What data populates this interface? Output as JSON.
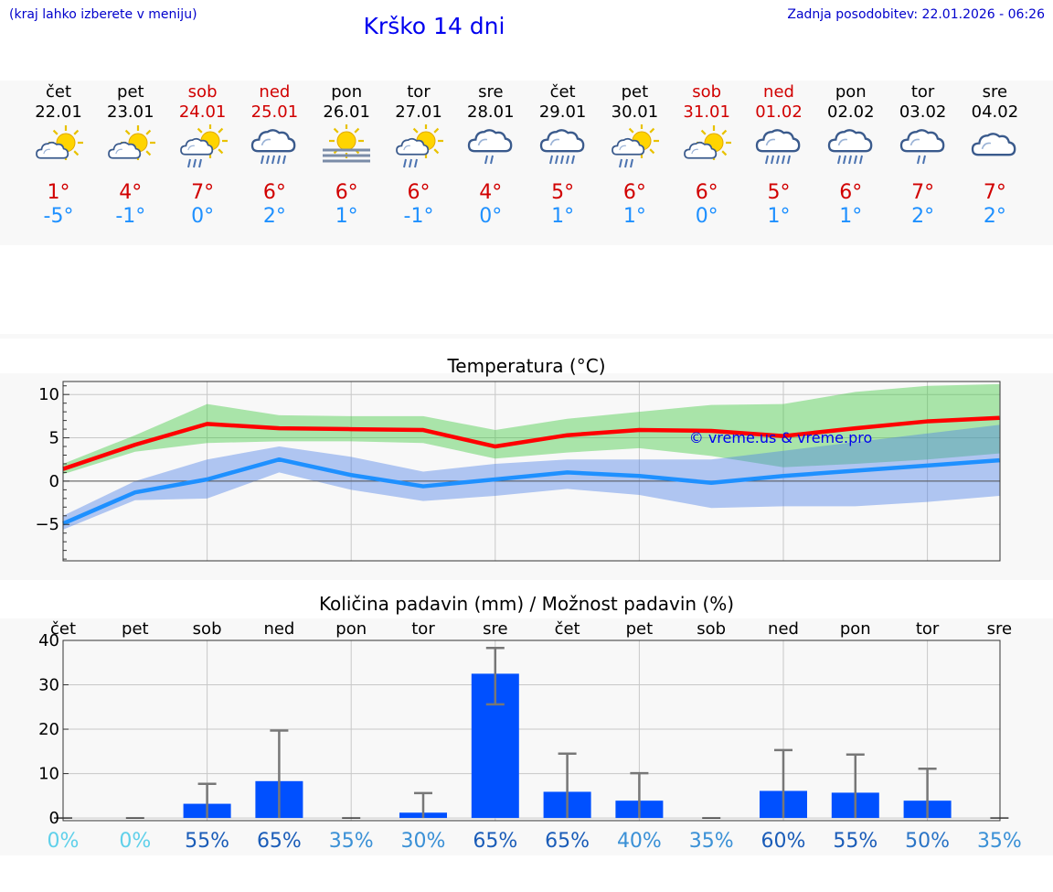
{
  "header": {
    "hint": "(kraj lahko izberete v meniju)",
    "title": "Krško 14 dni",
    "updated": "Zadnja posodobitev: 22.01.2026 - 06:26"
  },
  "days": [
    {
      "name": "čet",
      "date": "22.01",
      "weekend": false,
      "icon": "partly-cloudy-icon",
      "tmax": "1°",
      "tmin": "-5°"
    },
    {
      "name": "pet",
      "date": "23.01",
      "weekend": false,
      "icon": "partly-cloudy-icon",
      "tmax": "4°",
      "tmin": "-1°"
    },
    {
      "name": "sob",
      "date": "24.01",
      "weekend": true,
      "icon": "partly-cloudy-rain-icon",
      "tmax": "7°",
      "tmin": "0°"
    },
    {
      "name": "ned",
      "date": "25.01",
      "weekend": true,
      "icon": "cloud-rain-icon",
      "tmax": "6°",
      "tmin": "2°"
    },
    {
      "name": "pon",
      "date": "26.01",
      "weekend": false,
      "icon": "sun-fog-icon",
      "tmax": "6°",
      "tmin": "1°"
    },
    {
      "name": "tor",
      "date": "27.01",
      "weekend": false,
      "icon": "partly-cloudy-rain-icon",
      "tmax": "6°",
      "tmin": "-1°"
    },
    {
      "name": "sre",
      "date": "28.01",
      "weekend": false,
      "icon": "cloud-light-rain-icon",
      "tmax": "4°",
      "tmin": "0°"
    },
    {
      "name": "čet",
      "date": "29.01",
      "weekend": false,
      "icon": "cloud-rain-icon",
      "tmax": "5°",
      "tmin": "1°"
    },
    {
      "name": "pet",
      "date": "30.01",
      "weekend": false,
      "icon": "partly-cloudy-rain-icon",
      "tmax": "6°",
      "tmin": "1°"
    },
    {
      "name": "sob",
      "date": "31.01",
      "weekend": true,
      "icon": "partly-cloudy-icon",
      "tmax": "6°",
      "tmin": "0°"
    },
    {
      "name": "ned",
      "date": "01.02",
      "weekend": true,
      "icon": "cloud-rain-icon",
      "tmax": "5°",
      "tmin": "1°"
    },
    {
      "name": "pon",
      "date": "02.02",
      "weekend": false,
      "icon": "cloud-rain-icon",
      "tmax": "6°",
      "tmin": "1°"
    },
    {
      "name": "tor",
      "date": "03.02",
      "weekend": false,
      "icon": "cloud-light-rain-icon",
      "tmax": "7°",
      "tmin": "2°"
    },
    {
      "name": "sre",
      "date": "04.02",
      "weekend": false,
      "icon": "cloud-icon",
      "tmax": "7°",
      "tmin": "2°"
    }
  ],
  "colors": {
    "max": "#d10000",
    "min": "#1e90ff",
    "weekend": "#d10000",
    "bar": "#0050ff",
    "maxLine": "#ff0000",
    "minLine": "#1e90ff"
  },
  "chart_data": [
    {
      "type": "line",
      "title": "Temperatura (°C)",
      "watermark": "© vreme.us & vreme.pro",
      "ylim": [
        -9.2,
        11.5
      ],
      "yticks": [
        -5,
        0,
        5,
        10
      ],
      "ytick_labels": [
        "−5",
        "0",
        "5",
        "10"
      ],
      "x": [
        0,
        1,
        2,
        3,
        4,
        5,
        6,
        7,
        8,
        9,
        10,
        11,
        12,
        13
      ],
      "series": [
        {
          "name": "max",
          "values": [
            1.4,
            4.2,
            6.6,
            6.1,
            6.0,
            5.9,
            4.0,
            5.3,
            5.9,
            5.8,
            5.2,
            6.1,
            6.9,
            7.3
          ]
        },
        {
          "name": "min",
          "values": [
            -4.9,
            -1.3,
            0.2,
            2.5,
            0.7,
            -0.6,
            0.2,
            1.0,
            0.6,
            -0.2,
            0.6,
            1.2,
            1.8,
            2.4
          ]
        }
      ],
      "bands": [
        {
          "name": "max_range",
          "upper": [
            2.0,
            5.3,
            8.9,
            7.6,
            7.5,
            7.5,
            5.9,
            7.2,
            8.0,
            8.8,
            8.9,
            10.3,
            11.0,
            11.2
          ],
          "lower": [
            0.8,
            3.4,
            4.4,
            4.6,
            4.6,
            4.4,
            2.6,
            3.3,
            3.8,
            2.9,
            1.6,
            2.0,
            2.5,
            3.2
          ]
        },
        {
          "name": "min_range",
          "upper": [
            -4.0,
            0.0,
            2.5,
            4.0,
            2.8,
            1.1,
            2.0,
            2.5,
            2.5,
            2.5,
            3.5,
            4.5,
            5.5,
            6.5
          ],
          "lower": [
            -5.6,
            -2.2,
            -2.0,
            1.0,
            -1.0,
            -2.3,
            -1.7,
            -0.9,
            -1.6,
            -3.1,
            -2.9,
            -2.9,
            -2.4,
            -1.7
          ]
        }
      ]
    },
    {
      "type": "bar",
      "title": "Količina padavin (mm) / Možnost padavin (%)",
      "categories": [
        "čet",
        "pet",
        "sob",
        "ned",
        "pon",
        "tor",
        "sre",
        "čet",
        "pet",
        "sob",
        "ned",
        "pon",
        "tor",
        "sre"
      ],
      "values": [
        0,
        0,
        3.2,
        8.3,
        0,
        1.2,
        32.5,
        5.9,
        3.9,
        0,
        6.1,
        5.7,
        3.9,
        0
      ],
      "error_upper": [
        0,
        0,
        7.7,
        19.7,
        0,
        5.6,
        38.3,
        14.5,
        10.1,
        0,
        15.3,
        14.3,
        11.1,
        0
      ],
      "error_lower": [
        0,
        0,
        0,
        0,
        0,
        0,
        25.6,
        0,
        0,
        0,
        0,
        0,
        0,
        0
      ],
      "ylim": [
        -0.6,
        40
      ],
      "yticks": [
        0,
        10,
        20,
        30,
        40
      ],
      "probability": [
        "0%",
        "0%",
        "55%",
        "65%",
        "35%",
        "30%",
        "65%",
        "65%",
        "40%",
        "35%",
        "60%",
        "55%",
        "50%",
        "35%"
      ],
      "probability_colors": [
        "#5fd0ea",
        "#5fd0ea",
        "#1a5cb8",
        "#1a5cb8",
        "#3a90d6",
        "#3a90d6",
        "#1a5cb8",
        "#1a5cb8",
        "#3a90d6",
        "#3a90d6",
        "#1a5cb8",
        "#1a5cb8",
        "#2a74c6",
        "#3a90d6"
      ]
    }
  ]
}
